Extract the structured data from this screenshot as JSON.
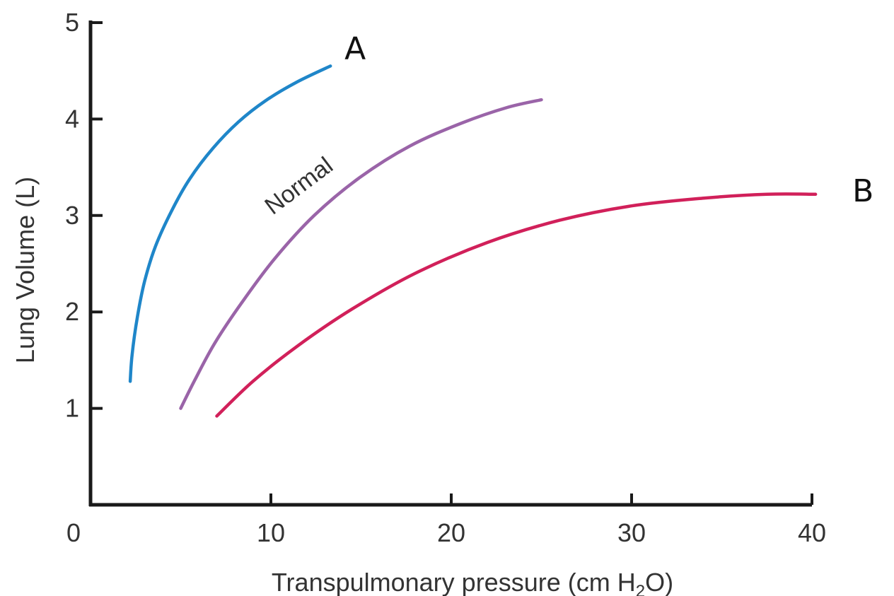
{
  "chart_data": {
    "type": "line",
    "xlabel": "Transpulmonary pressure (cm H",
    "xlabel_sub": "2",
    "xlabel_end": "O)",
    "ylabel": "Lung Volume (L)",
    "xlim": [
      0,
      40
    ],
    "ylim": [
      0,
      5
    ],
    "x_ticks": [
      0,
      10,
      20,
      30,
      40
    ],
    "y_ticks": [
      1,
      2,
      3,
      4,
      5
    ],
    "x_tick_labels": [
      "0",
      "10",
      "20",
      "30",
      "40"
    ],
    "y_tick_labels": [
      "1",
      "2",
      "3",
      "4",
      "5"
    ],
    "grid": false,
    "series": [
      {
        "label": "A",
        "color": "#1f86c9",
        "x": [
          2.2,
          2.3,
          2.6,
          3.0,
          3.6,
          4.5,
          5.5,
          6.8,
          8.2,
          9.7,
          11.4,
          13.3
        ],
        "y": [
          1.28,
          1.55,
          1.95,
          2.32,
          2.68,
          3.05,
          3.38,
          3.7,
          3.97,
          4.19,
          4.38,
          4.55
        ]
      },
      {
        "label": "Normal",
        "color": "#9a64a8",
        "x": [
          5.0,
          5.8,
          6.9,
          8.4,
          10.2,
          12.4,
          14.9,
          17.7,
          20.6,
          23.1,
          25.0
        ],
        "y": [
          1.0,
          1.3,
          1.68,
          2.1,
          2.55,
          3.0,
          3.39,
          3.72,
          3.96,
          4.12,
          4.2
        ]
      },
      {
        "label": "B",
        "color": "#d1205a",
        "x": [
          7.0,
          9.0,
          11.5,
          14.5,
          18.0,
          22.0,
          26.0,
          30.0,
          34.0,
          37.5,
          40.2
        ],
        "y": [
          0.92,
          1.28,
          1.65,
          2.03,
          2.4,
          2.72,
          2.95,
          3.1,
          3.18,
          3.22,
          3.22
        ]
      }
    ],
    "annotations": [
      {
        "text": "Normal",
        "x": 10.1,
        "y": 3.0,
        "rotation": -37
      }
    ]
  }
}
